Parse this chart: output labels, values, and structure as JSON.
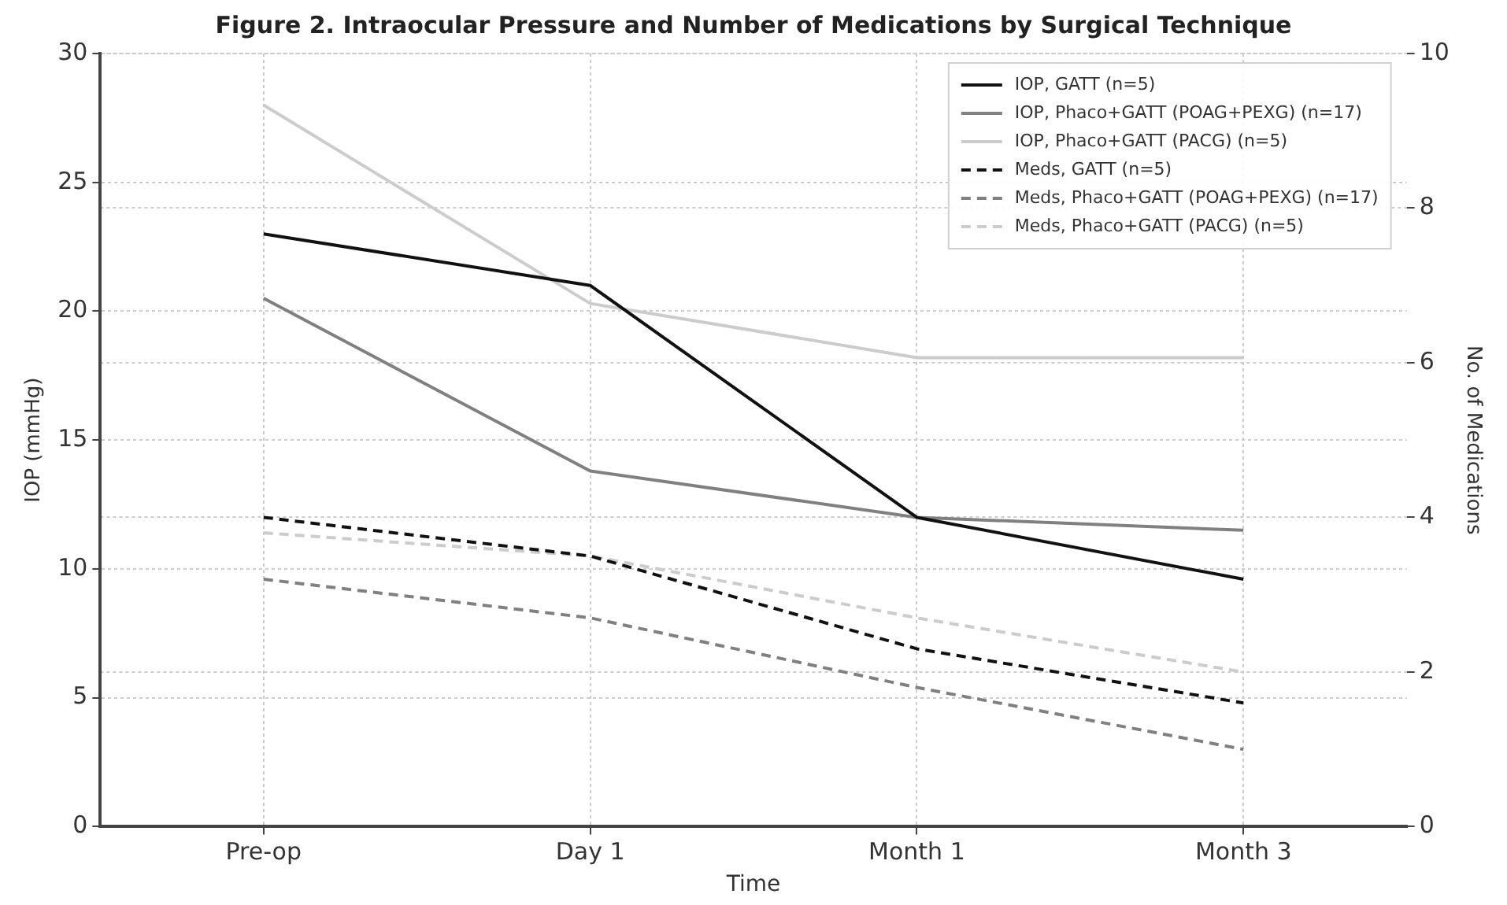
{
  "chart_data": {
    "type": "line",
    "title": "Figure 2. Intraocular Pressure and Number of Medications by Surgical Technique",
    "xlabel": "Time",
    "ylabel": "IOP (mmHg)",
    "y2label": "No. of Medications",
    "categories": [
      "Pre-op",
      "Day 1",
      "Month 1",
      "Month 3"
    ],
    "ylim": [
      0,
      30
    ],
    "yticks": [
      0,
      5,
      10,
      15,
      20,
      25,
      30
    ],
    "y2lim": [
      0,
      10
    ],
    "y2ticks": [
      0,
      2,
      4,
      6,
      8,
      10
    ],
    "grid": true,
    "legend": "top right",
    "marker": "none",
    "series": [
      {
        "name": "IOP, GATT (n=5)",
        "color": "#111111",
        "values": [
          23,
          21,
          12,
          9.6
        ],
        "line_style": "solid"
      },
      {
        "name": "IOP, Phaco+GATT (POAG+PEXG) (n=17)",
        "color": "#808080",
        "values": [
          20.5,
          13.8,
          12,
          11.5
        ],
        "line_style": "solid"
      },
      {
        "name": "IOP, Phaco+GATT (PACG) (n=5)",
        "color": "#cccccc",
        "values": [
          28,
          20.3,
          18.2,
          18.2
        ],
        "line_style": "solid"
      },
      {
        "name": "Meds, GATT (n=5)",
        "color": "#111111",
        "values": [
          4,
          3.5,
          2.3,
          1.6
        ],
        "line_style": "dashed",
        "axis": "y2"
      },
      {
        "name": "Meds, Phaco+GATT (POAG+PEXG) (n=17)",
        "color": "#808080",
        "values": [
          3.2,
          2.7,
          1.8,
          1
        ],
        "line_style": "dashed",
        "axis": "y2"
      },
      {
        "name": "Meds, Phaco+GATT (PACG) (n=5)",
        "color": "#cccccc",
        "values": [
          3.8,
          3.5,
          2.7,
          2
        ],
        "line_style": "dashed",
        "axis": "y2"
      }
    ]
  }
}
